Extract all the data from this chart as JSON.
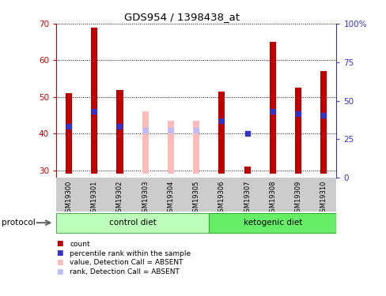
{
  "title": "GDS954 / 1398438_at",
  "samples": [
    "GSM19300",
    "GSM19301",
    "GSM19302",
    "GSM19303",
    "GSM19304",
    "GSM19305",
    "GSM19306",
    "GSM19307",
    "GSM19308",
    "GSM19309",
    "GSM19310"
  ],
  "ylim_left": [
    28,
    70
  ],
  "ylim_right": [
    0,
    100
  ],
  "yticks_left": [
    30,
    40,
    50,
    60,
    70
  ],
  "yticks_right": [
    0,
    25,
    50,
    75,
    100
  ],
  "ytick_right_labels": [
    "0",
    "25",
    "50",
    "75",
    "100%"
  ],
  "count_values": [
    51,
    69,
    52,
    null,
    null,
    null,
    51.5,
    31,
    65,
    52.5,
    57
  ],
  "rank_values": [
    42,
    46,
    42,
    null,
    null,
    null,
    43.5,
    40,
    46,
    45.5,
    45
  ],
  "absent_count_values": [
    null,
    null,
    null,
    46,
    43.5,
    43.5,
    null,
    null,
    null,
    null,
    null
  ],
  "absent_rank_values": [
    null,
    null,
    null,
    41,
    41,
    41,
    null,
    null,
    null,
    null,
    null
  ],
  "bar_bottom": 29,
  "bar_width": 0.25,
  "color_red": "#C00000",
  "color_blue": "#3333CC",
  "color_pink": "#FFBBBB",
  "color_lightblue": "#BBBBFF",
  "color_gray": "#CCCCCC",
  "color_ctrl_bg": "#BBFFBB",
  "color_keto_bg": "#66EE66",
  "legend_items": [
    {
      "color": "#C00000",
      "label": "count"
    },
    {
      "color": "#3333CC",
      "label": "percentile rank within the sample"
    },
    {
      "color": "#FFBBBB",
      "label": "value, Detection Call = ABSENT"
    },
    {
      "color": "#BBBBFF",
      "label": "rank, Detection Call = ABSENT"
    }
  ],
  "ctrl_range": [
    0,
    5
  ],
  "keto_range": [
    6,
    10
  ]
}
